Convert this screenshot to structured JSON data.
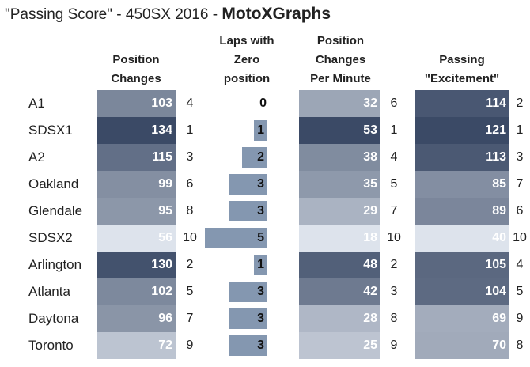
{
  "title": {
    "main": "\"Passing Score\" - 450SX 2016 - ",
    "brand": "MotoXGraphs"
  },
  "columns": {
    "position_changes": [
      "Position",
      "Changes"
    ],
    "laps_zero": [
      "Laps with",
      "Zero",
      "position"
    ],
    "per_minute": [
      "Position",
      "Changes",
      "Per Minute"
    ],
    "excitement": [
      "Passing",
      "\"Excitement\""
    ]
  },
  "chart_data": {
    "type": "table",
    "title": "\"Passing Score\" - 450SX 2016 - MotoXGraphs",
    "rows": [
      {
        "race": "A1",
        "position_changes": 103,
        "pc_rank": 4,
        "laps_zero": 0,
        "per_minute": 32,
        "pm_rank": 6,
        "excitement": 114,
        "ex_rank": 2
      },
      {
        "race": "SDSX1",
        "position_changes": 134,
        "pc_rank": 1,
        "laps_zero": 1,
        "per_minute": 53,
        "pm_rank": 1,
        "excitement": 121,
        "ex_rank": 1
      },
      {
        "race": "A2",
        "position_changes": 115,
        "pc_rank": 3,
        "laps_zero": 2,
        "per_minute": 38,
        "pm_rank": 4,
        "excitement": 113,
        "ex_rank": 3
      },
      {
        "race": "Oakland",
        "position_changes": 99,
        "pc_rank": 6,
        "laps_zero": 3,
        "per_minute": 35,
        "pm_rank": 5,
        "excitement": 85,
        "ex_rank": 7
      },
      {
        "race": "Glendale",
        "position_changes": 95,
        "pc_rank": 8,
        "laps_zero": 3,
        "per_minute": 29,
        "pm_rank": 7,
        "excitement": 89,
        "ex_rank": 6
      },
      {
        "race": "SDSX2",
        "position_changes": 56,
        "pc_rank": 10,
        "laps_zero": 5,
        "per_minute": 18,
        "pm_rank": 10,
        "excitement": 40,
        "ex_rank": 10
      },
      {
        "race": "Arlington",
        "position_changes": 130,
        "pc_rank": 2,
        "laps_zero": 1,
        "per_minute": 48,
        "pm_rank": 2,
        "excitement": 105,
        "ex_rank": 4
      },
      {
        "race": "Atlanta",
        "position_changes": 102,
        "pc_rank": 5,
        "laps_zero": 3,
        "per_minute": 42,
        "pm_rank": 3,
        "excitement": 104,
        "ex_rank": 5
      },
      {
        "race": "Daytona",
        "position_changes": 96,
        "pc_rank": 7,
        "laps_zero": 3,
        "per_minute": 28,
        "pm_rank": 8,
        "excitement": 69,
        "ex_rank": 9
      },
      {
        "race": "Toronto",
        "position_changes": 72,
        "pc_rank": 9,
        "laps_zero": 3,
        "per_minute": 25,
        "pm_rank": 9,
        "excitement": 70,
        "ex_rank": 8
      }
    ],
    "colors": {
      "scale_dark": "#3b4a66",
      "scale_light": "#dde3ec",
      "bar": "#8497b0"
    }
  }
}
